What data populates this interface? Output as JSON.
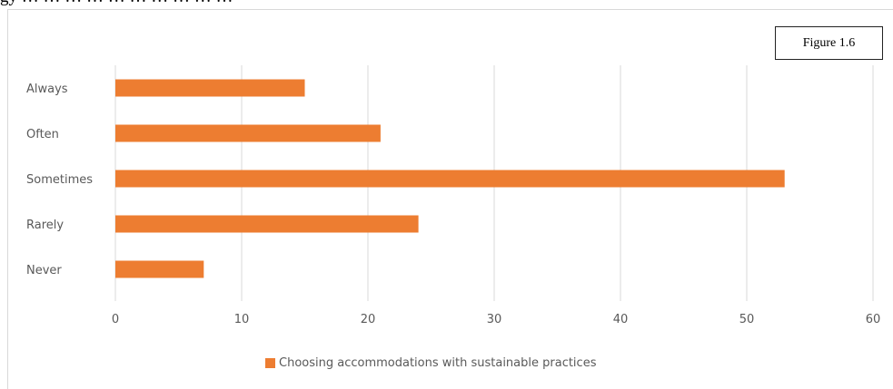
{
  "page": {
    "top_text": "gy … … … … … … … … … …"
  },
  "figure_label": "Figure 1.6",
  "colors": {
    "bar": "#ed7d31",
    "grid": "#d9d9d9",
    "text": "#595959"
  },
  "chart_data": {
    "type": "bar",
    "orientation": "horizontal",
    "categories": [
      "Always",
      "Often",
      "Sometimes",
      "Rarely",
      "Never"
    ],
    "series": [
      {
        "name": "Choosing accommodations with sustainable practices",
        "values": [
          15,
          21,
          53,
          24,
          7
        ]
      }
    ],
    "xlim": [
      0,
      60
    ],
    "xticks": [
      0,
      10,
      20,
      30,
      40,
      50,
      60
    ],
    "grid": true,
    "legend_position": "bottom"
  }
}
